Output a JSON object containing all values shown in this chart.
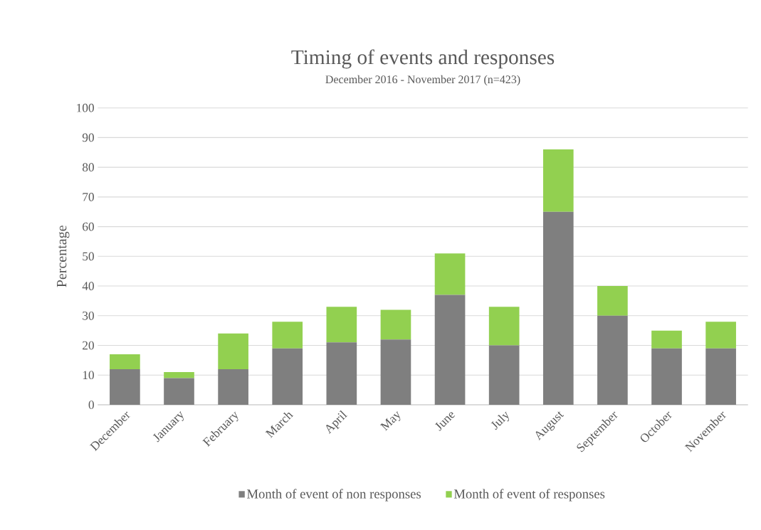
{
  "chart_data": {
    "type": "bar",
    "title": "Timing of events and responses",
    "subtitle": "December 2016 - November 2017 (n=423)",
    "ylabel": "Percentage",
    "categories": [
      "December",
      "January",
      "February",
      "March",
      "April",
      "May",
      "June",
      "July",
      "August",
      "September",
      "October",
      "November"
    ],
    "series": [
      {
        "name": "Month of event of non responses",
        "color": "#7f7f7f",
        "values": [
          12,
          9,
          12,
          19,
          21,
          22,
          37,
          20,
          65,
          30,
          19,
          19
        ]
      },
      {
        "name": "Month of event of responses",
        "color": "#92d050",
        "values": [
          5,
          2,
          12,
          9,
          12,
          10,
          14,
          13,
          21,
          10,
          6,
          9
        ]
      }
    ],
    "stacked": true,
    "ylim": [
      0,
      100
    ],
    "yticks": [
      0,
      10,
      20,
      30,
      40,
      50,
      60,
      70,
      80,
      90,
      100
    ],
    "grid": "y",
    "legend": "bottom"
  }
}
